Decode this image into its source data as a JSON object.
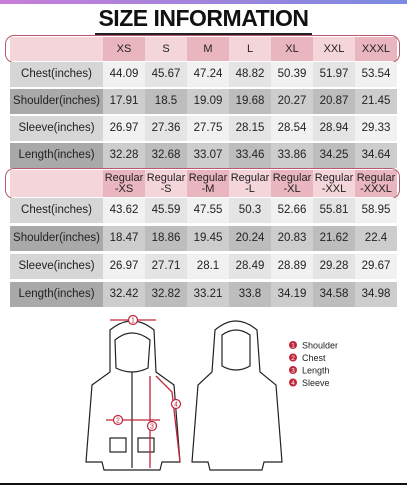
{
  "title": "SIZE INFORMATION",
  "tables": [
    {
      "header": [
        [
          "XS"
        ],
        [
          "S"
        ],
        [
          "M"
        ],
        [
          "L"
        ],
        [
          "XL"
        ],
        [
          "XXL"
        ],
        [
          "XXXL"
        ]
      ],
      "rows": [
        {
          "label": "Chest(inches)",
          "values": [
            44.09,
            45.67,
            47.24,
            48.82,
            50.39,
            51.97,
            53.54
          ]
        },
        {
          "label": "Shoulder(inches)",
          "values": [
            17.91,
            18.5,
            19.09,
            19.68,
            20.27,
            20.87,
            21.45
          ]
        },
        {
          "label": "Sleeve(inches)",
          "values": [
            26.97,
            27.36,
            27.75,
            28.15,
            28.54,
            28.94,
            29.33
          ]
        },
        {
          "label": "Length(inches)",
          "values": [
            32.28,
            32.68,
            33.07,
            33.46,
            33.86,
            34.25,
            34.64
          ]
        }
      ]
    },
    {
      "header": [
        [
          "Regular",
          "-XS"
        ],
        [
          "Regular",
          "-S"
        ],
        [
          "Regular",
          "-M"
        ],
        [
          "Regular",
          "-L"
        ],
        [
          "Regular",
          "-XL"
        ],
        [
          "Regular",
          "-XXL"
        ],
        [
          "Regular",
          "-XXXL"
        ]
      ],
      "rows": [
        {
          "label": "Chest(inches)",
          "values": [
            43.62,
            45.59,
            47.55,
            50.3,
            52.66,
            55.81,
            58.95
          ]
        },
        {
          "label": "Shoulder(inches)",
          "values": [
            18.47,
            18.86,
            19.45,
            20.24,
            20.83,
            21.62,
            22.4
          ]
        },
        {
          "label": "Sleeve(inches)",
          "values": [
            26.97,
            27.71,
            28.1,
            28.49,
            28.89,
            29.28,
            29.67
          ]
        },
        {
          "label": "Length(inches)",
          "values": [
            32.42,
            32.82,
            33.21,
            33.8,
            34.19,
            34.58,
            34.98
          ]
        }
      ]
    }
  ],
  "diagram": {
    "markers": [
      "1",
      "2",
      "3",
      "4"
    ],
    "legend": [
      {
        "num": "1",
        "label": "Shoulder"
      },
      {
        "num": "2",
        "label": "Chest"
      },
      {
        "num": "3",
        "label": "Length"
      },
      {
        "num": "4",
        "label": "Sleeve"
      }
    ]
  }
}
